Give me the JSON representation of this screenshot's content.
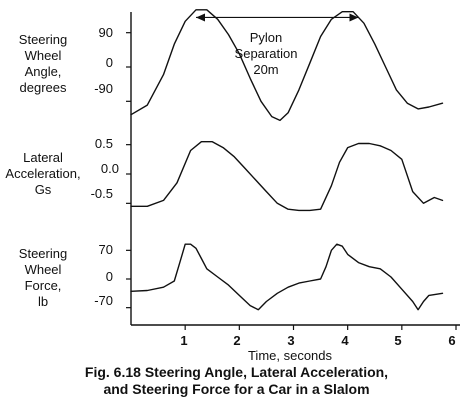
{
  "chart_data": {
    "type": "line",
    "xlabel": "Time, seconds",
    "x_ticks": [
      "1",
      "2",
      "3",
      "4",
      "5",
      "6"
    ],
    "xlim": [
      0,
      6
    ],
    "panels": [
      {
        "id": "steering-angle",
        "ylabel": [
          "Steering",
          "Wheel",
          "Angle,",
          "degrees"
        ],
        "y_ticks": [
          "90",
          "0",
          "-90"
        ],
        "y_tick_values": [
          90,
          0,
          -90
        ],
        "ylim": [
          -160,
          160
        ],
        "x": [
          0.0,
          0.3,
          0.6,
          0.8,
          1.0,
          1.2,
          1.4,
          1.6,
          1.8,
          2.0,
          2.2,
          2.4,
          2.6,
          2.75,
          2.9,
          3.1,
          3.3,
          3.5,
          3.7,
          3.9,
          4.1,
          4.3,
          4.5,
          4.7,
          4.9,
          5.1,
          5.3,
          5.5,
          5.75
        ],
        "y": [
          -125,
          -100,
          -20,
          60,
          120,
          150,
          150,
          125,
          85,
          35,
          -30,
          -90,
          -130,
          -140,
          -120,
          -60,
          10,
          80,
          125,
          145,
          145,
          115,
          60,
          0,
          -60,
          -95,
          -110,
          -105,
          -95
        ],
        "annotation": {
          "text_lines": [
            "Pylon",
            "Separation",
            "20m"
          ],
          "arrow_from": 1.2,
          "arrow_to": 4.2,
          "arrow_y": 130
        }
      },
      {
        "id": "lateral-acceleration",
        "ylabel": [
          "Lateral",
          "Acceleration,",
          "Gs"
        ],
        "y_ticks": [
          "0.5",
          "0.0",
          "-0.5"
        ],
        "y_tick_values": [
          0.5,
          0.0,
          -0.5
        ],
        "ylim": [
          -0.75,
          0.75
        ],
        "x": [
          0.0,
          0.3,
          0.6,
          0.85,
          1.1,
          1.3,
          1.5,
          1.7,
          1.9,
          2.1,
          2.3,
          2.5,
          2.7,
          2.9,
          3.1,
          3.3,
          3.5,
          3.7,
          3.85,
          4.0,
          4.2,
          4.4,
          4.6,
          4.8,
          5.0,
          5.2,
          5.4,
          5.6,
          5.75
        ],
        "y": [
          -0.55,
          -0.55,
          -0.45,
          -0.15,
          0.4,
          0.55,
          0.55,
          0.45,
          0.3,
          0.1,
          -0.1,
          -0.3,
          -0.5,
          -0.6,
          -0.62,
          -0.62,
          -0.6,
          -0.2,
          0.2,
          0.45,
          0.52,
          0.52,
          0.48,
          0.4,
          0.25,
          -0.3,
          -0.5,
          -0.4,
          -0.45
        ]
      },
      {
        "id": "steering-force",
        "ylabel": [
          "Steering",
          "Wheel",
          "Force,",
          "lb"
        ],
        "y_ticks": [
          "70",
          "0",
          "-70"
        ],
        "y_tick_values": [
          70,
          0,
          -70
        ],
        "ylim": [
          -105,
          105
        ],
        "x": [
          0.0,
          0.3,
          0.6,
          0.8,
          0.9,
          1.0,
          1.1,
          1.2,
          1.3,
          1.4,
          1.6,
          1.8,
          2.0,
          2.2,
          2.35,
          2.5,
          2.7,
          2.9,
          3.1,
          3.3,
          3.5,
          3.6,
          3.7,
          3.8,
          3.9,
          4.0,
          4.2,
          4.4,
          4.6,
          4.8,
          5.0,
          5.2,
          5.3,
          5.4,
          5.5,
          5.75
        ],
        "y": [
          -30,
          -28,
          -20,
          -5,
          40,
          85,
          85,
          75,
          50,
          25,
          5,
          -15,
          -40,
          -65,
          -75,
          -55,
          -35,
          -20,
          -10,
          -5,
          0,
          30,
          70,
          85,
          80,
          60,
          40,
          30,
          25,
          5,
          -25,
          -55,
          -75,
          -55,
          -40,
          -35
        ]
      }
    ],
    "caption": [
      "Fig. 6.18 Steering Angle, Lateral Acceleration,",
      "and Steering Force for a Car in a Slalom"
    ]
  }
}
